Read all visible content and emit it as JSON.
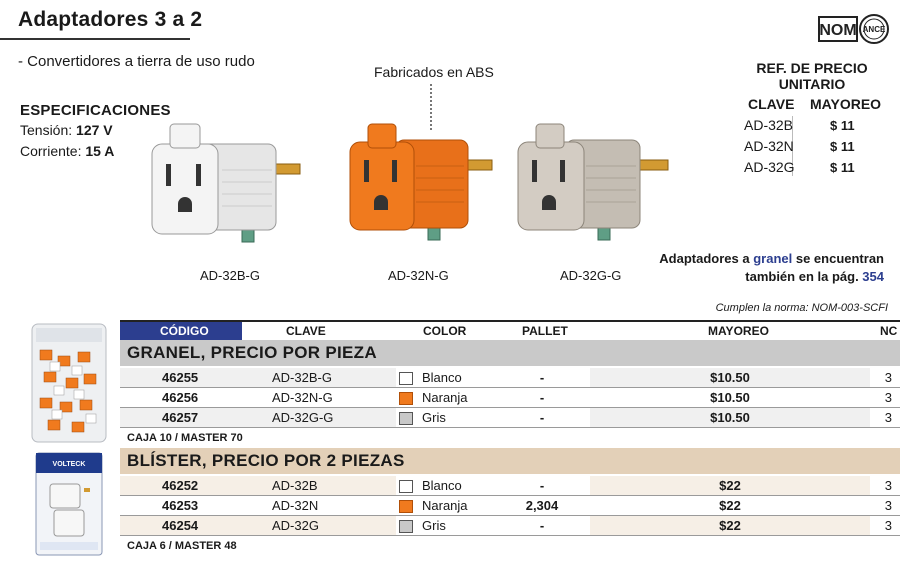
{
  "header": {
    "title": "Adaptadores 3 a 2",
    "subtitle": "- Convertidores a tierra de uso rudo",
    "nom_logo": "NOM",
    "ance_text": "ANCE"
  },
  "specs": {
    "heading": "ESPECIFICACIONES",
    "tension_label": "Tensión:",
    "tension_value": "127 V",
    "corriente_label": "Corriente:",
    "corriente_value": "15 A"
  },
  "callout": "Fabricados en ABS",
  "products": [
    {
      "caption": "AD-32B-G",
      "color": "#f2f2f2"
    },
    {
      "caption": "AD-32N-G",
      "color": "#f07a1e"
    },
    {
      "caption": "AD-32G-G",
      "color": "#cfc8bf"
    }
  ],
  "ref_price": {
    "heading_line1": "REF. DE PRECIO",
    "heading_line2": "UNITARIO",
    "col_clave": "CLAVE",
    "col_mayoreo": "MAYOREO",
    "rows": [
      {
        "clave": "AD-32B",
        "price": "$ 11"
      },
      {
        "clave": "AD-32N",
        "price": "$ 11"
      },
      {
        "clave": "AD-32G",
        "price": "$ 11"
      }
    ]
  },
  "granel_note": {
    "pre": "Adaptadores a ",
    "link": "granel",
    "mid": " se encuentran",
    "line2_pre": "también en la pág. ",
    "page": "354"
  },
  "norma": "Cumplen la norma: NOM-003-SCFI",
  "table": {
    "headers": {
      "codigo": "CÓDIGO",
      "clave": "CLAVE",
      "color": "COLOR",
      "pallet": "PALLET",
      "mayoreo": "MAYOREO",
      "nc": "NC"
    },
    "granel": {
      "title": "GRANEL, PRECIO POR PIEZA",
      "rows": [
        {
          "code": "46255",
          "clave": "AD-32B-G",
          "color": "Blanco",
          "swatch": "#ffffff",
          "pallet": "-",
          "mayoreo": "$10.50",
          "nc": "3"
        },
        {
          "code": "46256",
          "clave": "AD-32N-G",
          "color": "Naranja",
          "swatch": "#f07a1e",
          "pallet": "-",
          "mayoreo": "$10.50",
          "nc": "3"
        },
        {
          "code": "46257",
          "clave": "AD-32G-G",
          "color": "Gris",
          "swatch": "#c8c8c8",
          "pallet": "-",
          "mayoreo": "$10.50",
          "nc": "3"
        }
      ],
      "caja": "CAJA 10 / MASTER 70"
    },
    "blister": {
      "title": "BLÍSTER, PRECIO POR 2 PIEZAS",
      "rows": [
        {
          "code": "46252",
          "clave": "AD-32B",
          "color": "Blanco",
          "swatch": "#ffffff",
          "pallet": "-",
          "mayoreo": "$22",
          "nc": "3"
        },
        {
          "code": "46253",
          "clave": "AD-32N",
          "color": "Naranja",
          "swatch": "#f07a1e",
          "pallet": "2,304",
          "mayoreo": "$22",
          "nc": "3"
        },
        {
          "code": "46254",
          "clave": "AD-32G",
          "color": "Gris",
          "swatch": "#c8c8c8",
          "pallet": "-",
          "mayoreo": "$22",
          "nc": "3"
        }
      ],
      "caja": "CAJA 6 / MASTER 48"
    }
  },
  "blister_pack_brand": "VOLTECK"
}
